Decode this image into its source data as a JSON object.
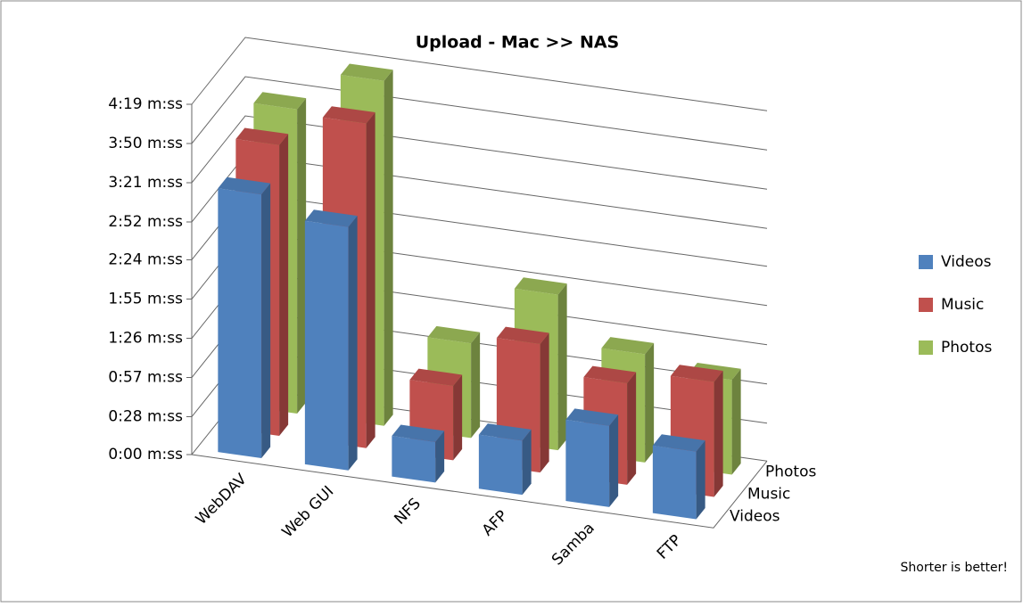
{
  "chart_data": {
    "type": "bar3d",
    "title": "Upload - Mac >> NAS",
    "annotation": "Shorter is better!",
    "categories": [
      "WebDAV",
      "Web GUI",
      "NFS",
      "AFP",
      "Samba",
      "FTP"
    ],
    "series": [
      {
        "name": "Videos",
        "color": "#4f81bd",
        "values": [
          195,
          180,
          30,
          40,
          60,
          50
        ]
      },
      {
        "name": "Music",
        "color": "#c0504d",
        "values": [
          215,
          240,
          55,
          95,
          75,
          85
        ]
      },
      {
        "name": "Photos",
        "color": "#9bbb59",
        "values": [
          225,
          255,
          70,
          115,
          80,
          70
        ]
      }
    ],
    "ylim": [
      0,
      259
    ],
    "yticks": [
      {
        "value": 0,
        "label": "0:00 m:ss"
      },
      {
        "value": 28,
        "label": "0:28 m:ss"
      },
      {
        "value": 57,
        "label": "0:57 m:ss"
      },
      {
        "value": 86,
        "label": "1:26 m:ss"
      },
      {
        "value": 115,
        "label": "1:55 m:ss"
      },
      {
        "value": 144,
        "label": "2:24 m:ss"
      },
      {
        "value": 172,
        "label": "2:52 m:ss"
      },
      {
        "value": 201,
        "label": "3:21 m:ss"
      },
      {
        "value": 230,
        "label": "3:50 m:ss"
      },
      {
        "value": 259,
        "label": "4:19 m:ss"
      }
    ],
    "grid": true,
    "legend": "right"
  }
}
